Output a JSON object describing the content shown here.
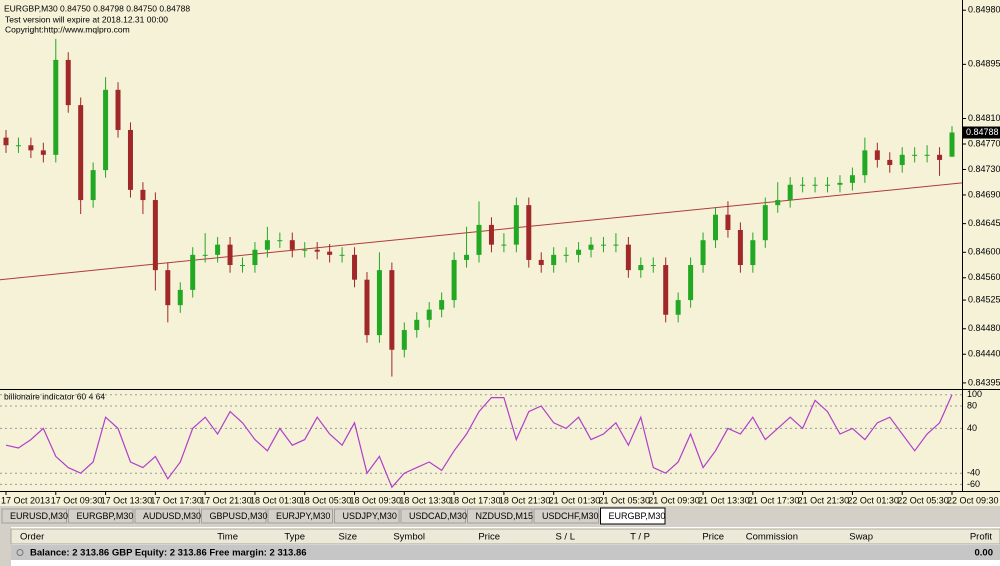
{
  "header": {
    "symbol_line": "EURGBP,M30  0.84750 0.84798 0.84750 0.84788",
    "notice": "Test version will expire at 2018.12.31 00:00",
    "copyright": "Copyright:http://www.mqlpro.com"
  },
  "chart_data": [
    {
      "type": "candlestick",
      "up_color": "#22a822",
      "down_color": "#a02828",
      "trend_color": "#b03a3a",
      "categories": [
        "17 Oct 2013",
        null,
        null,
        null,
        "17 Oct 09:30",
        null,
        null,
        null,
        "17 Oct 13:30",
        null,
        null,
        null,
        "17 Oct 17:30",
        null,
        null,
        null,
        "17 Oct 21:30",
        null,
        null,
        null,
        "18 Oct 01:30",
        null,
        null,
        null,
        "18 Oct 05:30",
        null,
        null,
        null,
        "18 Oct 09:30",
        null,
        null,
        null,
        "18 Oct 13:30",
        null,
        null,
        null,
        "18 Oct 17:30",
        null,
        null,
        null,
        "18 Oct 21:30",
        null,
        null,
        null,
        "21 Oct 01:30",
        null,
        null,
        null,
        "21 Oct 05:30",
        null,
        null,
        null,
        "21 Oct 09:30",
        null,
        null,
        null,
        "21 Oct 13:30",
        null,
        null,
        null,
        "21 Oct 17:30",
        null,
        null,
        null,
        "21 Oct 21:30",
        null,
        null,
        null,
        "22 Oct 01:30",
        null,
        null,
        null,
        "22 Oct 05:30",
        null,
        null,
        null,
        "22 Oct 09:30"
      ],
      "open": [
        0.8478,
        0.84768,
        0.84768,
        0.8476,
        0.84753,
        0.84902,
        0.84831,
        0.84682,
        0.84729,
        0.84855,
        0.84792,
        0.84698,
        0.84682,
        0.84572,
        0.84517,
        0.84541,
        0.84596,
        0.84596,
        0.84612,
        0.8458,
        0.8458,
        0.84604,
        0.84619,
        0.84619,
        0.84604,
        0.84604,
        0.84601,
        0.84596,
        0.84596,
        0.84557,
        0.8447,
        0.84572,
        0.84447,
        0.84478,
        0.84494,
        0.8451,
        0.84525,
        0.84588,
        0.84596,
        0.84643,
        0.84612,
        0.84612,
        0.84674,
        0.84588,
        0.8458,
        0.84596,
        0.84596,
        0.84604,
        0.84612,
        0.84612,
        0.84612,
        0.84572,
        0.8458,
        0.8458,
        0.84502,
        0.84525,
        0.8458,
        0.84619,
        0.84659,
        0.84635,
        0.8458,
        0.84619,
        0.84674,
        0.84682,
        0.84706,
        0.84706,
        0.84706,
        0.84706,
        0.84709,
        0.84721,
        0.8476,
        0.84745,
        0.84737,
        0.84753,
        0.84753,
        0.84753,
        0.8475
      ],
      "high": [
        0.84792,
        0.8478,
        0.8478,
        0.84772,
        0.84935,
        0.84914,
        0.84843,
        0.84741,
        0.84875,
        0.84867,
        0.84804,
        0.8471,
        0.84694,
        0.84584,
        0.84553,
        0.84608,
        0.8463,
        0.84624,
        0.84624,
        0.84592,
        0.84616,
        0.8464,
        0.84631,
        0.84631,
        0.84616,
        0.84616,
        0.84613,
        0.84608,
        0.84608,
        0.84569,
        0.846,
        0.84584,
        0.8449,
        0.84506,
        0.84522,
        0.84537,
        0.846,
        0.8464,
        0.8468,
        0.84655,
        0.8463,
        0.84686,
        0.84686,
        0.846,
        0.84608,
        0.84608,
        0.84616,
        0.84624,
        0.84624,
        0.8463,
        0.84624,
        0.84592,
        0.84592,
        0.84592,
        0.84537,
        0.84592,
        0.84631,
        0.84671,
        0.8468,
        0.84647,
        0.84631,
        0.84686,
        0.8471,
        0.84718,
        0.84718,
        0.84718,
        0.84718,
        0.84721,
        0.84733,
        0.8478,
        0.84772,
        0.84757,
        0.84765,
        0.84765,
        0.84768,
        0.84765,
        0.84798
      ],
      "low": [
        0.84756,
        0.84756,
        0.84748,
        0.84741,
        0.84741,
        0.84819,
        0.8466,
        0.8467,
        0.84717,
        0.8478,
        0.84686,
        0.8466,
        0.8454,
        0.8449,
        0.84505,
        0.84529,
        0.84584,
        0.84584,
        0.84568,
        0.84568,
        0.84568,
        0.84592,
        0.84607,
        0.84592,
        0.84592,
        0.84589,
        0.84584,
        0.84584,
        0.84545,
        0.84458,
        0.84458,
        0.84405,
        0.84435,
        0.84466,
        0.84482,
        0.84498,
        0.84513,
        0.84576,
        0.84584,
        0.846,
        0.846,
        0.846,
        0.84576,
        0.84568,
        0.84568,
        0.84584,
        0.84584,
        0.84592,
        0.846,
        0.846,
        0.8456,
        0.8456,
        0.84568,
        0.8449,
        0.8449,
        0.84513,
        0.84568,
        0.84607,
        0.84623,
        0.84568,
        0.84568,
        0.84607,
        0.84662,
        0.8467,
        0.84694,
        0.84694,
        0.84694,
        0.84694,
        0.84697,
        0.84709,
        0.84733,
        0.84725,
        0.84725,
        0.84741,
        0.84741,
        0.8472,
        0.8475
      ],
      "close": [
        0.84768,
        0.84768,
        0.8476,
        0.84753,
        0.84902,
        0.84831,
        0.84682,
        0.84729,
        0.84855,
        0.84792,
        0.84698,
        0.84682,
        0.84572,
        0.84517,
        0.84541,
        0.84596,
        0.84596,
        0.84612,
        0.8458,
        0.8458,
        0.84604,
        0.84619,
        0.84619,
        0.84604,
        0.84604,
        0.84601,
        0.84596,
        0.84596,
        0.84557,
        0.8447,
        0.84572,
        0.84447,
        0.84478,
        0.84494,
        0.8451,
        0.84525,
        0.84588,
        0.84596,
        0.84643,
        0.84612,
        0.84612,
        0.84674,
        0.84588,
        0.8458,
        0.84596,
        0.84596,
        0.84604,
        0.84612,
        0.84612,
        0.84612,
        0.84572,
        0.8458,
        0.8458,
        0.84502,
        0.84525,
        0.8458,
        0.84619,
        0.84659,
        0.84635,
        0.8458,
        0.84619,
        0.84674,
        0.84682,
        0.84706,
        0.84706,
        0.84706,
        0.84706,
        0.84709,
        0.84721,
        0.8476,
        0.84745,
        0.84737,
        0.84753,
        0.84753,
        0.84753,
        0.84745,
        0.84788
      ],
      "trendline": [
        0.84557,
        0.84709
      ],
      "last_price": 0.84788,
      "ylim": [
        0.84387,
        0.84996
      ],
      "yticks": [
        {
          "value": 0.8498,
          "label": "0.84980"
        },
        0.84895,
        {
          "value": 0.8481,
          "label": "0.84810"
        },
        {
          "value": 0.8477,
          "label": "0.84770"
        },
        {
          "value": 0.8473,
          "label": "0.84730"
        },
        {
          "value": 0.8469,
          "label": "0.84690"
        },
        0.84645,
        {
          "value": 0.846,
          "label": "0.84600"
        },
        {
          "value": 0.8456,
          "label": "0.84560"
        },
        0.84525,
        {
          "value": 0.8448,
          "label": "0.84480"
        },
        {
          "value": 0.8444,
          "label": "0.84440"
        },
        0.84395
      ]
    },
    {
      "type": "line",
      "title": "billionaire indicator 60 4 64",
      "series": [
        {
          "color": "#b040c8",
          "values": [
            10,
            5,
            20,
            40,
            -10,
            -30,
            -40,
            -20,
            60,
            40,
            -20,
            -30,
            -10,
            -50,
            -20,
            40,
            60,
            30,
            70,
            50,
            20,
            0,
            40,
            10,
            20,
            60,
            30,
            10,
            50,
            -40,
            -10,
            -65,
            -40,
            -30,
            -20,
            -35,
            0,
            30,
            70,
            95,
            95,
            20,
            70,
            80,
            50,
            40,
            60,
            20,
            30,
            50,
            10,
            60,
            -30,
            -40,
            -20,
            30,
            -30,
            0,
            40,
            30,
            60,
            20,
            40,
            60,
            40,
            90,
            70,
            30,
            40,
            20,
            50,
            60,
            30,
            0,
            30,
            50,
            100
          ]
        }
      ],
      "ylim": [
        -70,
        105
      ],
      "yticks": [
        100,
        80,
        40,
        -40,
        -60
      ],
      "grid": true
    }
  ],
  "tabs": [
    "EURUSD,M30",
    "EURGBP,M30",
    "AUDUSD,M30",
    "GBPUSD,M30",
    "EURJPY,M30",
    "USDJPY,M30",
    "USDCAD,M30",
    "NZDUSD,M15",
    "USDCHF,M30",
    "EURGBP,M30"
  ],
  "active_tab": 9,
  "terminal": {
    "columns": [
      "Order",
      "Time",
      "Type",
      "Size",
      "Symbol",
      "Price",
      "S / L",
      "T / P",
      "Price",
      "Commission",
      "Swap",
      "Profit"
    ],
    "balance": "Balance: 2 313.86 GBP  Equity: 2 313.86  Free margin: 2 313.86",
    "profit": "0.00"
  }
}
